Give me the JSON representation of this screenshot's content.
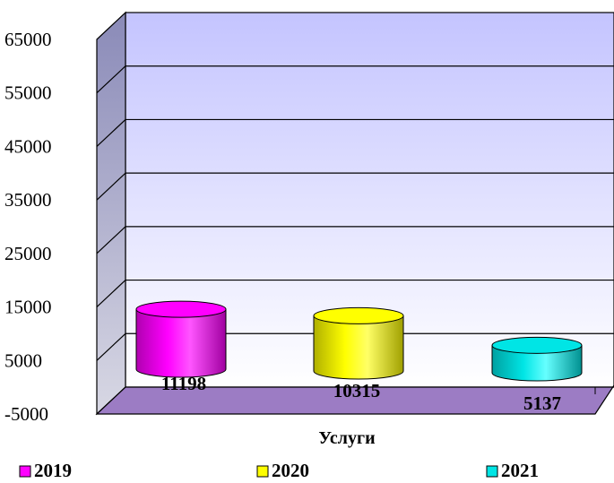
{
  "chart_data": {
    "type": "bar",
    "bar_shape": "cylinder-3d",
    "categories": [
      "Услуги"
    ],
    "xlabel": "Услуги",
    "ylabel": "",
    "title": "",
    "ylim": [
      -5000,
      65000
    ],
    "yticks": [
      -5000,
      5000,
      15000,
      25000,
      35000,
      45000,
      55000,
      65000
    ],
    "grid": true,
    "legend_position": "bottom",
    "series": [
      {
        "name": "2019",
        "values": [
          11198
        ],
        "color": "#ff00ff"
      },
      {
        "name": "2020",
        "values": [
          10315
        ],
        "color": "#ffff00"
      },
      {
        "name": "2021",
        "values": [
          5137
        ],
        "color": "#00e5e5"
      }
    ],
    "colors": {
      "back_wall_top": "#c8c8ff",
      "back_wall_bottom": "#ffffff",
      "side_wall": "#aaaacc",
      "floor": "#9c7cc4"
    }
  }
}
